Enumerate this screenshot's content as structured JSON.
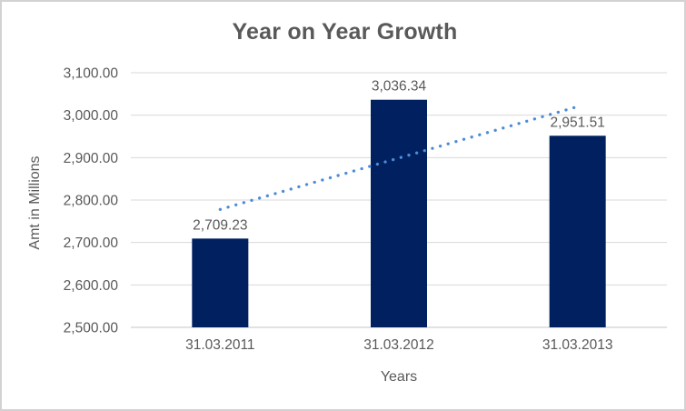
{
  "chart": {
    "title": "Year on Year Growth",
    "ylabel": "Amt in Millions",
    "xlabel": "Years"
  },
  "chart_data": {
    "type": "bar",
    "title": "Year on Year Growth",
    "xlabel": "Years",
    "ylabel": "Amt in Millions",
    "categories": [
      "31.03.2011",
      "31.03.2012",
      "31.03.2013"
    ],
    "values": [
      2709.23,
      3036.34,
      2951.51
    ],
    "data_labels": [
      "2,709.23",
      "3,036.34",
      "2,951.51"
    ],
    "ylim": [
      2500,
      3100
    ],
    "ytick_step": 100,
    "ytick_labels": [
      "2,500.00",
      "2,600.00",
      "2,700.00",
      "2,800.00",
      "2,900.00",
      "3,000.00",
      "3,100.00"
    ],
    "grid": true,
    "legend": "none",
    "trendline": {
      "type": "linear",
      "style": "dotted",
      "endpoint_values": [
        2777.89,
        3020.17
      ]
    },
    "colors": {
      "bar": "#002060",
      "trendline": "#4E8CD5",
      "gridline": "#D9D9D9",
      "axis_line": "#C6C6C6",
      "text": "#595959",
      "background": "#FFFFFF",
      "border": "#D3D1D1"
    }
  }
}
